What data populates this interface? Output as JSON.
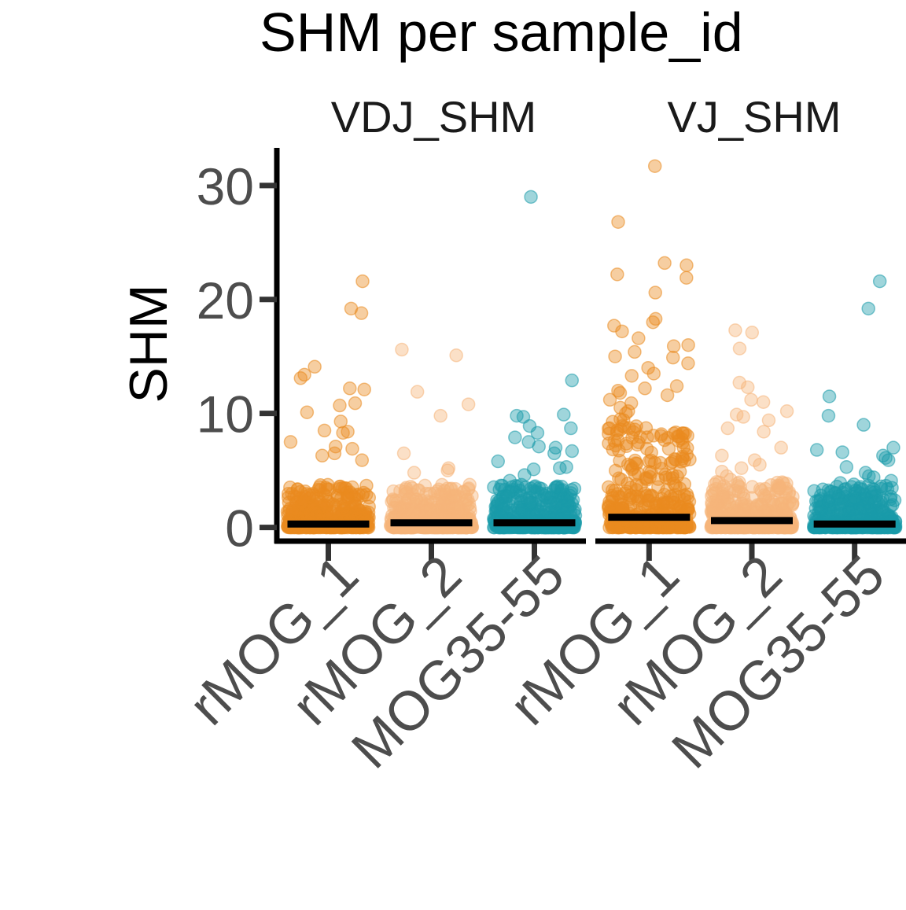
{
  "chart_data": {
    "type": "scatter",
    "title": "SHM per sample_id",
    "ylabel": "SHM",
    "xlabel": "",
    "ylim": [
      -1.2,
      33.3
    ],
    "yticks": [
      0,
      10,
      20,
      30
    ],
    "grid": false,
    "legend": "none",
    "categories": [
      "rMOG_1",
      "rMOG_2",
      "MOG35-55"
    ],
    "category_colors": {
      "rMOG_1": "#E98A1F",
      "rMOG_2": "#F5B57A",
      "MOG35-55": "#1A9AAA"
    },
    "facets": [
      {
        "name": "VDJ_SHM",
        "groups": [
          {
            "category": "rMOG_1",
            "median": 0.3,
            "outliers": [
              21.6,
              19.2,
              18.8,
              14.1,
              13.4,
              13.1,
              12.2,
              12.1,
              10.9,
              10.7,
              10.1,
              9.3,
              8.5,
              8.4,
              8.3,
              7.5,
              7.1,
              6.9,
              6.5,
              6.3,
              5.9
            ]
          },
          {
            "category": "rMOG_2",
            "median": 0.4,
            "outliers": [
              15.6,
              15.1,
              11.9,
              10.8,
              9.8,
              6.5,
              5.2,
              5.0,
              4.8
            ]
          },
          {
            "category": "MOG35-55",
            "median": 0.4,
            "outliers": [
              29.0,
              12.9,
              9.9,
              9.8,
              9.7,
              8.9,
              8.7,
              8.3,
              7.9,
              7.5,
              7.1,
              7.0,
              6.7,
              6.5,
              5.8,
              5.3,
              5.2,
              5.1,
              4.6,
              4.1
            ]
          }
        ]
      },
      {
        "name": "VJ_SHM",
        "groups": [
          {
            "category": "rMOG_1",
            "median": 0.9,
            "outliers": [
              31.7,
              26.8,
              23.2,
              23.0,
              22.2,
              21.9,
              20.6,
              18.3,
              18.0,
              17.7,
              17.2,
              16.6,
              16.0,
              15.9,
              15.4,
              15.0,
              14.9,
              14.4,
              14.0,
              13.5,
              13.3,
              12.4,
              12.2,
              12.0,
              11.8,
              11.6,
              11.2,
              10.9,
              10.5,
              10.2,
              10.0
            ]
          },
          {
            "category": "rMOG_2",
            "median": 0.6,
            "outliers": [
              17.3,
              17.1,
              15.7,
              12.7,
              12.3,
              11.2,
              11.0,
              10.2,
              9.9,
              9.7,
              9.4,
              8.7,
              8.4,
              7.0,
              6.3,
              5.9,
              5.5,
              5.2,
              4.9,
              4.5,
              4.2
            ]
          },
          {
            "category": "MOG35-55",
            "median": 0.3,
            "outliers": [
              21.6,
              19.2,
              11.5,
              9.8,
              9.0,
              7.0,
              6.8,
              6.6,
              6.3,
              6.1,
              5.9,
              5.3,
              4.8,
              4.5,
              4.4,
              4.1,
              3.9,
              3.6
            ]
          }
        ]
      }
    ]
  }
}
